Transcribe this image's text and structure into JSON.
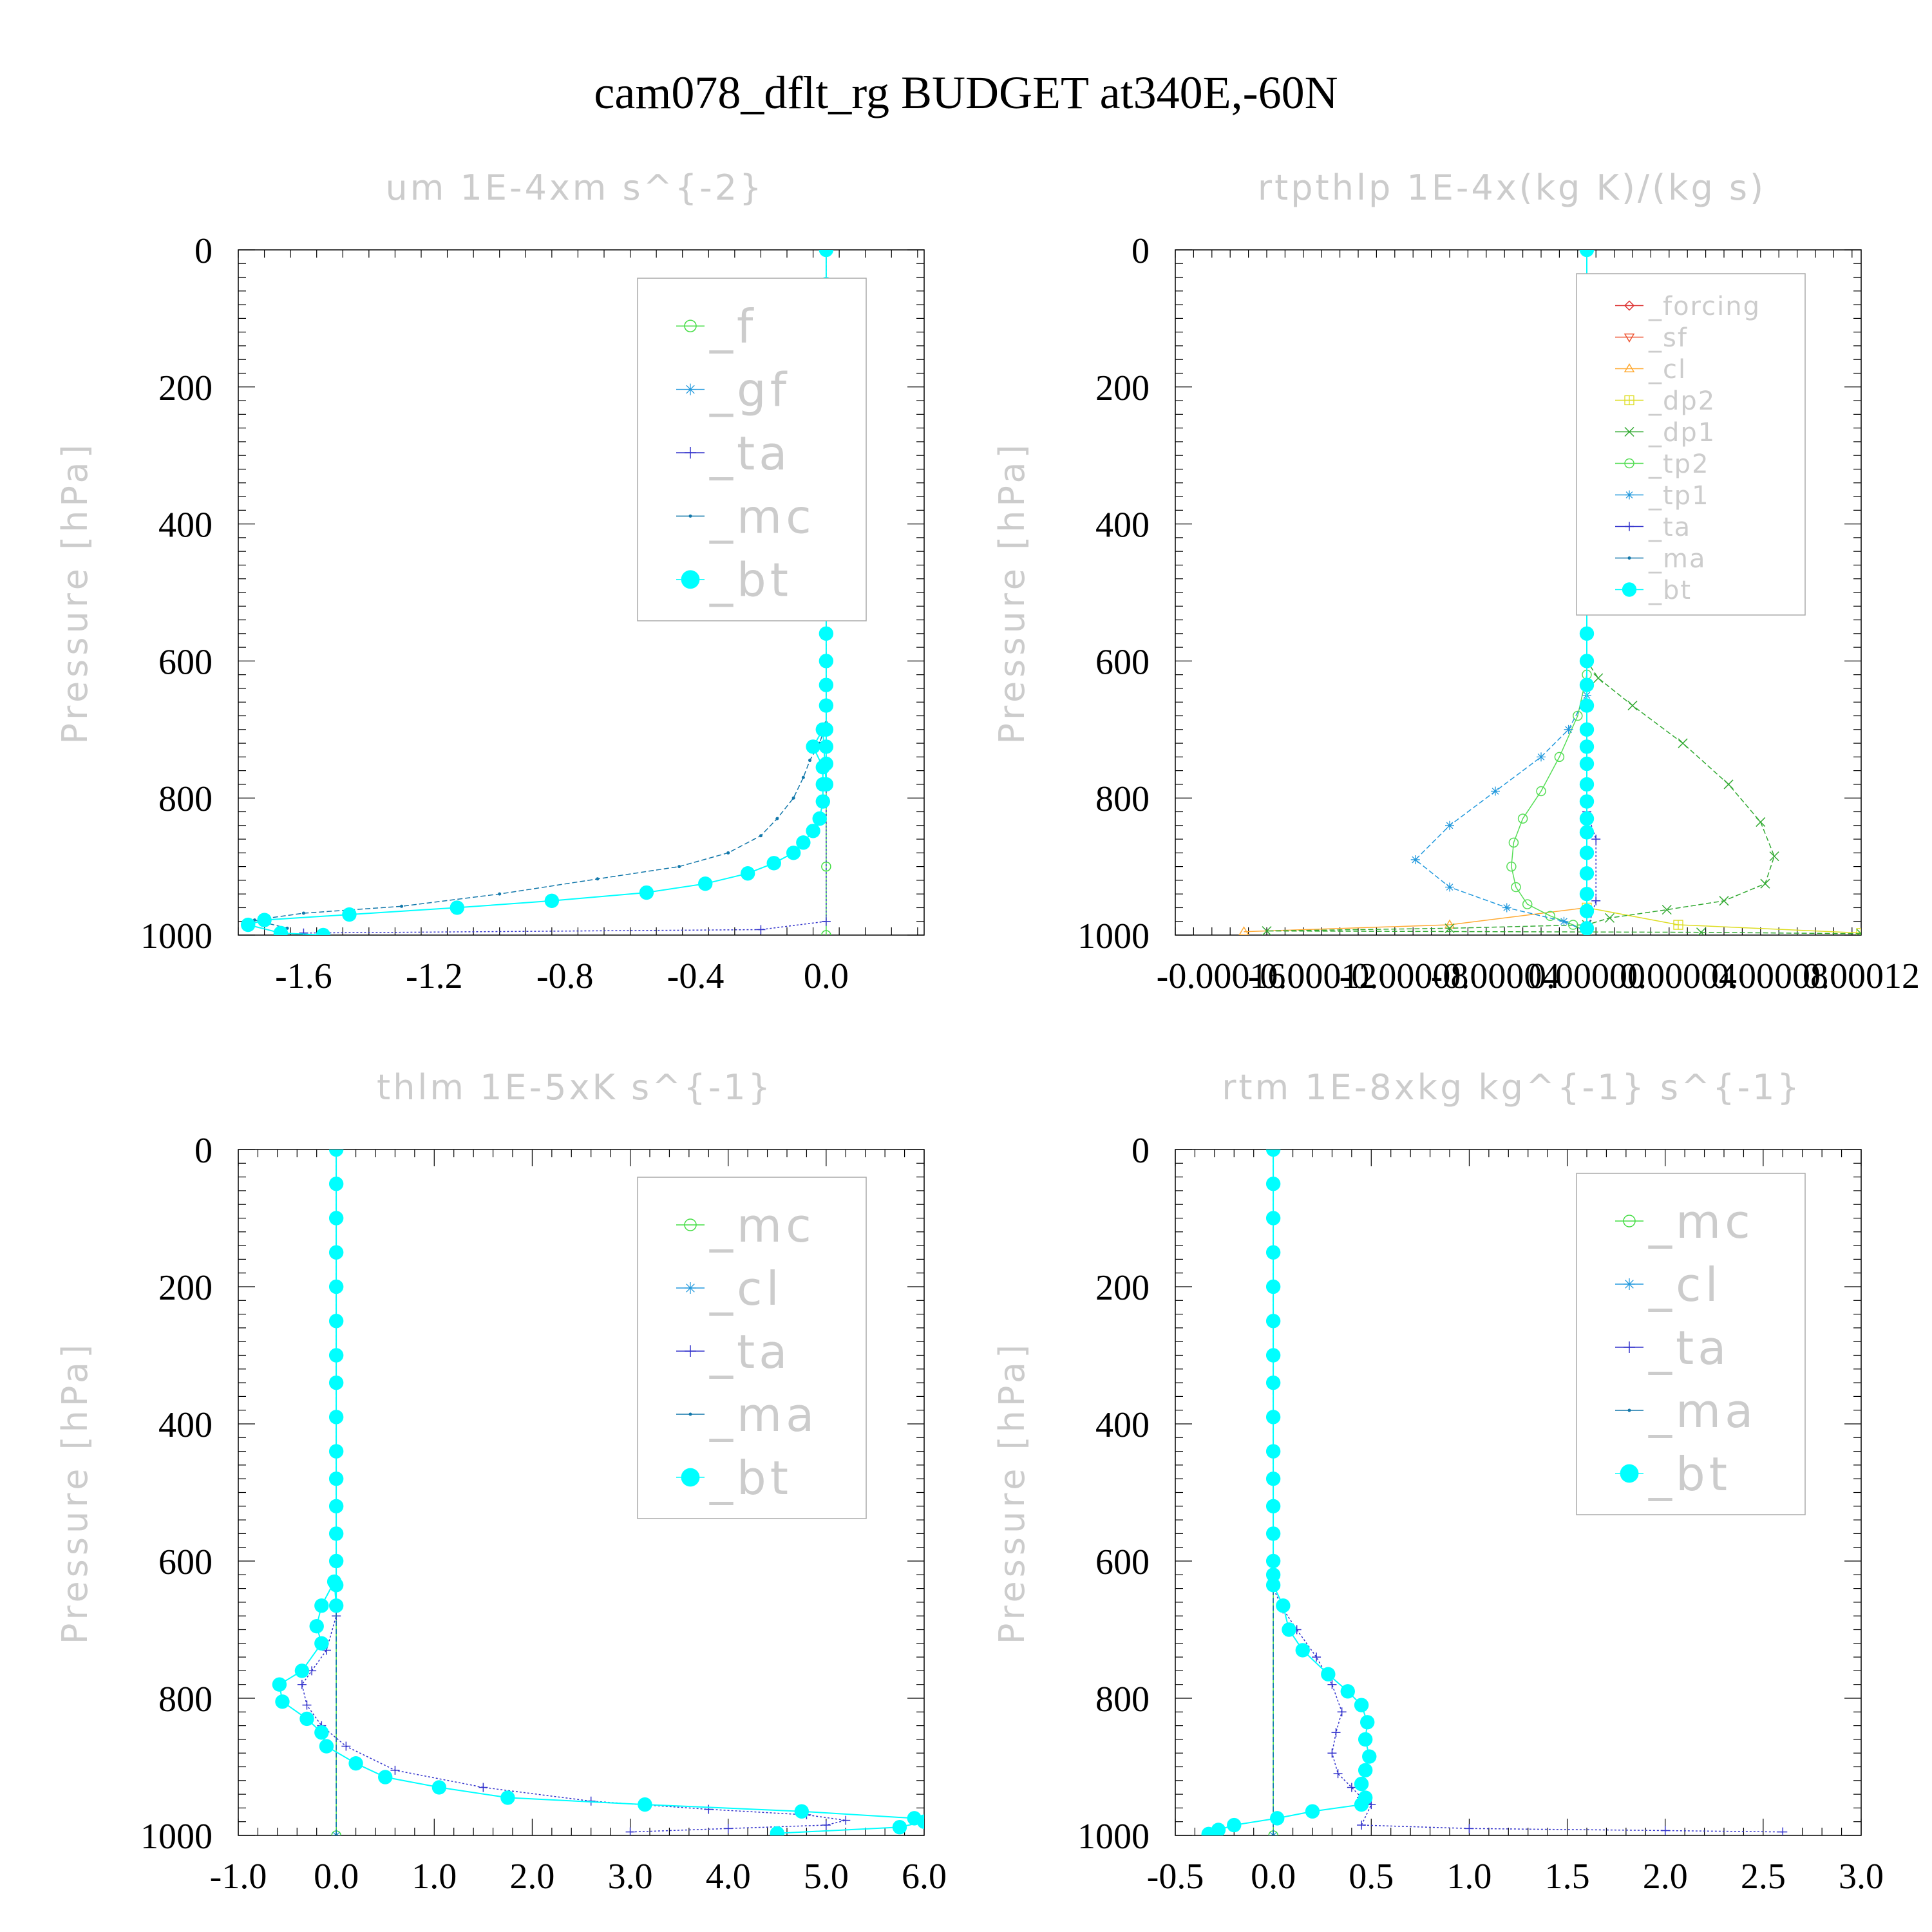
{
  "figure_title": "cam078_dflt_rg  BUDGET at340E,-60N",
  "chart_data": [
    {
      "type": "line",
      "title": "um   1E-4xm s^{-2}",
      "ylabel": "Pressure [hPa]",
      "xlabel": "",
      "ylim": [
        1000,
        0
      ],
      "xlim": [
        -1.8,
        0.3
      ],
      "xticks": [
        "-1.6",
        "-1.2",
        "-0.8",
        "-0.4",
        "0.0"
      ],
      "xtick_values": [
        -1.6,
        -1.2,
        -0.8,
        -0.4,
        0.0
      ],
      "yticks": [
        "0",
        "200",
        "400",
        "600",
        "800",
        "1000"
      ],
      "legend_position": "top-right",
      "legend": [
        {
          "label": "_f",
          "color": "#44dd44",
          "marker": "circle-open"
        },
        {
          "label": "_gf",
          "color": "#2299dd",
          "marker": "asterisk"
        },
        {
          "label": "_ta",
          "color": "#3333cc",
          "marker": "plus"
        },
        {
          "label": "_mc",
          "color": "#1177aa",
          "marker": "dot"
        },
        {
          "label": "_bt",
          "color": "#00ffff",
          "marker": "filled-circle"
        }
      ],
      "series": [
        {
          "name": "_f",
          "color": "#44dd44",
          "marker": "circle-open",
          "dash": "none",
          "x": [
            0,
            0,
            0,
            0
          ],
          "y": [
            0,
            600,
            900,
            1000
          ]
        },
        {
          "name": "_ta",
          "color": "#3333cc",
          "marker": "plus",
          "dash": "3,3",
          "x": [
            0,
            0,
            -0.2,
            -1.6
          ],
          "y": [
            0,
            980,
            992,
            997
          ]
        },
        {
          "name": "_mc",
          "color": "#1177aa",
          "marker": "dot",
          "dash": "8,4",
          "x": [
            0,
            0,
            0,
            -0.02,
            -0.05,
            -0.07,
            -0.1,
            -0.15,
            -0.2,
            -0.3,
            -0.45,
            -0.7,
            -1.0,
            -1.3,
            -1.6,
            -1.75,
            -1.65
          ],
          "y": [
            0,
            600,
            690,
            720,
            745,
            770,
            800,
            830,
            855,
            880,
            900,
            918,
            940,
            958,
            968,
            978,
            990
          ]
        },
        {
          "name": "_bt",
          "color": "#00ffff",
          "marker": "filled-circle",
          "dash": "none",
          "x": [
            0,
            0,
            0,
            0,
            0,
            0,
            0,
            0,
            0,
            0,
            0,
            0,
            0,
            0,
            0,
            0,
            0,
            0,
            0,
            0,
            -0.01,
            -0.04,
            -0.01,
            -0.01,
            -0.01,
            -0.02,
            -0.04,
            -0.07,
            -0.1,
            -0.16,
            -0.24,
            -0.37,
            -0.55,
            -0.84,
            -1.13,
            -1.46,
            -1.72,
            -1.77,
            -1.67,
            -1.54
          ],
          "y": [
            0,
            50,
            100,
            150,
            200,
            250,
            300,
            340,
            390,
            440,
            480,
            520,
            560,
            600,
            635,
            665,
            700,
            725,
            750,
            780,
            700,
            725,
            755,
            780,
            805,
            830,
            848,
            865,
            880,
            895,
            910,
            925,
            938,
            950,
            960,
            970,
            978,
            985,
            997,
            1000
          ]
        }
      ]
    },
    {
      "type": "line",
      "title": "rtpthlp   1E-4x(kg K)/(kg s)",
      "ylabel": "Pressure [hPa]",
      "xlabel": "",
      "ylim": [
        1000,
        0
      ],
      "xlim": [
        -0.00018,
        0.00012
      ],
      "xticks": [
        "-0.00016",
        "-0.00012",
        "-0.00008",
        "-0.00004",
        "0.00000",
        "0.00004",
        "0.00008",
        "0.00012"
      ],
      "xtick_values": [
        -0.00016,
        -0.00012,
        -8e-05,
        -4e-05,
        0.0,
        4e-05,
        8e-05,
        0.00012
      ],
      "yticks": [
        "0",
        "200",
        "400",
        "600",
        "800",
        "1000"
      ],
      "legend_position": "top-right",
      "legend": [
        {
          "label": "_forcing",
          "color": "#dd3333",
          "marker": "diamond"
        },
        {
          "label": "_sf",
          "color": "#ee5533",
          "marker": "triangle-down"
        },
        {
          "label": "_cl",
          "color": "#ffaa33",
          "marker": "triangle-up"
        },
        {
          "label": "_dp2",
          "color": "#dddd22",
          "marker": "square-plus"
        },
        {
          "label": "_dp1",
          "color": "#33aa33",
          "marker": "x"
        },
        {
          "label": "_tp2",
          "color": "#55dd55",
          "marker": "circle-open"
        },
        {
          "label": "_tp1",
          "color": "#2299dd",
          "marker": "asterisk"
        },
        {
          "label": "_ta",
          "color": "#3333cc",
          "marker": "plus"
        },
        {
          "label": "_ma",
          "color": "#1177aa",
          "marker": "dot"
        },
        {
          "label": "_bt",
          "color": "#00ffff",
          "marker": "filled-circle"
        }
      ],
      "series": [
        {
          "name": "_forcing",
          "color": "#dd3333",
          "marker": "diamond",
          "dash": "none",
          "x": [
            0,
            0
          ],
          "y": [
            0,
            1000
          ]
        },
        {
          "name": "_sf",
          "color": "#ee5533",
          "marker": "triangle-down",
          "dash": "3,3",
          "x": [
            0,
            0
          ],
          "y": [
            0,
            1000
          ]
        },
        {
          "name": "_cl",
          "color": "#ffaa33",
          "marker": "triangle-up",
          "dash": "none",
          "x": [
            0,
            0,
            -6e-05,
            -0.00015
          ],
          "y": [
            0,
            960,
            985,
            995
          ]
        },
        {
          "name": "_dp2",
          "color": "#dddd22",
          "marker": "square-plus",
          "dash": "none",
          "x": [
            0,
            0,
            4e-05,
            0.00012
          ],
          "y": [
            0,
            960,
            985,
            997
          ]
        },
        {
          "name": "_dp1",
          "color": "#33aa33",
          "marker": "x",
          "dash": "8,4",
          "x": [
            0,
            0,
            5e-06,
            2e-05,
            4.2e-05,
            6.2e-05,
            7.6e-05,
            8.2e-05,
            7.8e-05,
            6e-05,
            3.5e-05,
            1e-05,
            0,
            -6e-05,
            -0.00014,
            5e-05,
            0.00012
          ],
          "y": [
            0,
            600,
            625,
            665,
            720,
            780,
            835,
            885,
            925,
            950,
            963,
            975,
            985,
            990,
            994,
            996,
            998
          ]
        },
        {
          "name": "_tp2",
          "color": "#55dd55",
          "marker": "circle-open",
          "dash": "none",
          "x": [
            0,
            0,
            -4e-06,
            -1.2e-05,
            -2e-05,
            -2.8e-05,
            -3.2e-05,
            -3.3e-05,
            -3.1e-05,
            -2.6e-05,
            -1.6e-05,
            -6e-06,
            0
          ],
          "y": [
            0,
            620,
            680,
            740,
            790,
            830,
            865,
            900,
            930,
            955,
            972,
            985,
            995
          ]
        },
        {
          "name": "_tp1",
          "color": "#2299dd",
          "marker": "asterisk",
          "dash": "8,4",
          "x": [
            0,
            0,
            -8e-06,
            -2e-05,
            -4e-05,
            -6e-05,
            -7.5e-05,
            -6e-05,
            -3.5e-05,
            -1e-05,
            0
          ],
          "y": [
            0,
            650,
            700,
            740,
            790,
            840,
            890,
            930,
            960,
            980,
            995
          ]
        },
        {
          "name": "_ta",
          "color": "#3333cc",
          "marker": "plus",
          "dash": "3,3",
          "x": [
            0,
            0,
            4e-06,
            4e-06,
            0
          ],
          "y": [
            0,
            820,
            860,
            950,
            995
          ]
        },
        {
          "name": "_ma",
          "color": "#1177aa",
          "marker": "dot",
          "dash": "8,4",
          "x": [
            0,
            0
          ],
          "y": [
            0,
            1000
          ]
        },
        {
          "name": "_bt",
          "color": "#00ffff",
          "marker": "filled-circle",
          "dash": "none",
          "x": [
            0,
            0,
            0,
            0,
            0,
            0,
            0,
            0,
            0,
            0,
            0,
            0,
            0,
            0,
            0,
            0,
            0,
            0,
            0,
            0,
            0,
            0,
            0,
            0,
            0,
            0,
            0,
            0
          ],
          "y": [
            0,
            50,
            100,
            150,
            200,
            250,
            300,
            340,
            390,
            440,
            480,
            520,
            560,
            600,
            635,
            665,
            700,
            725,
            750,
            780,
            805,
            830,
            850,
            880,
            910,
            940,
            965,
            990
          ]
        }
      ]
    },
    {
      "type": "line",
      "title": "thlm   1E-5xK s^{-1}",
      "ylabel": "Pressure [hPa]",
      "xlabel": "",
      "ylim": [
        1000,
        0
      ],
      "xlim": [
        -1.0,
        6.0
      ],
      "xticks": [
        "-1.0",
        "0.0",
        "1.0",
        "2.0",
        "3.0",
        "4.0",
        "5.0",
        "6.0"
      ],
      "xtick_values": [
        -1.0,
        0.0,
        1.0,
        2.0,
        3.0,
        4.0,
        5.0,
        6.0
      ],
      "yticks": [
        "0",
        "200",
        "400",
        "600",
        "800",
        "1000"
      ],
      "legend_position": "top-right",
      "legend": [
        {
          "label": "_mc",
          "color": "#44dd44",
          "marker": "circle-open"
        },
        {
          "label": "_cl",
          "color": "#2299dd",
          "marker": "asterisk"
        },
        {
          "label": "_ta",
          "color": "#3333cc",
          "marker": "plus"
        },
        {
          "label": "_ma",
          "color": "#1177aa",
          "marker": "dot"
        },
        {
          "label": "_bt",
          "color": "#00ffff",
          "marker": "filled-circle"
        }
      ],
      "series": [
        {
          "name": "_mc",
          "color": "#44dd44",
          "marker": "circle-open",
          "dash": "none",
          "x": [
            0,
            0
          ],
          "y": [
            0,
            1000
          ]
        },
        {
          "name": "_cl",
          "color": "#2299dd",
          "marker": "asterisk",
          "dash": "8,4",
          "x": [
            0,
            0
          ],
          "y": [
            0,
            1000
          ]
        },
        {
          "name": "_ta",
          "color": "#3333cc",
          "marker": "plus",
          "dash": "3,3",
          "x": [
            0,
            0,
            -0.1,
            -0.25,
            -0.35,
            -0.3,
            -0.15,
            0.1,
            0.6,
            1.5,
            2.6,
            3.8,
            4.8,
            5.2,
            5.0,
            4.0,
            3.0
          ],
          "y": [
            0,
            680,
            730,
            760,
            780,
            810,
            840,
            870,
            905,
            930,
            950,
            962,
            970,
            978,
            985,
            990,
            995
          ]
        },
        {
          "name": "_ma",
          "color": "#1177aa",
          "marker": "dot",
          "dash": "8,4",
          "x": [
            0,
            0
          ],
          "y": [
            0,
            1000
          ]
        },
        {
          "name": "_bt",
          "color": "#00ffff",
          "marker": "filled-circle",
          "dash": "none",
          "x": [
            0,
            0,
            0,
            0,
            0,
            0,
            0,
            0,
            0,
            0,
            0,
            0,
            0,
            0,
            0,
            0,
            -0.02,
            -0.15,
            -0.2,
            -0.15,
            -0.35,
            -0.58,
            -0.55,
            -0.3,
            -0.15,
            -0.1,
            0.2,
            0.5,
            1.05,
            1.75,
            3.15,
            4.75,
            5.9,
            6.0,
            5.75,
            4.5
          ],
          "y": [
            0,
            50,
            100,
            150,
            200,
            250,
            300,
            340,
            390,
            440,
            480,
            520,
            560,
            600,
            635,
            665,
            630,
            665,
            695,
            720,
            760,
            780,
            805,
            830,
            850,
            870,
            895,
            915,
            930,
            945,
            955,
            965,
            975,
            980,
            988,
            997
          ]
        }
      ]
    },
    {
      "type": "line",
      "title": "rtm   1E-8xkg kg^{-1} s^{-1}",
      "ylabel": "Pressure [hPa]",
      "xlabel": "",
      "ylim": [
        1000,
        0
      ],
      "xlim": [
        -0.5,
        3.0
      ],
      "xticks": [
        "-0.5",
        "0.0",
        "0.5",
        "1.0",
        "1.5",
        "2.0",
        "2.5",
        "3.0"
      ],
      "xtick_values": [
        -0.5,
        0.0,
        0.5,
        1.0,
        1.5,
        2.0,
        2.5,
        3.0
      ],
      "yticks": [
        "0",
        "200",
        "400",
        "600",
        "800",
        "1000"
      ],
      "legend_position": "top-right",
      "legend": [
        {
          "label": "_mc",
          "color": "#44dd44",
          "marker": "circle-open"
        },
        {
          "label": "_cl",
          "color": "#2299dd",
          "marker": "asterisk"
        },
        {
          "label": "_ta",
          "color": "#3333cc",
          "marker": "plus"
        },
        {
          "label": "_ma",
          "color": "#1177aa",
          "marker": "dot"
        },
        {
          "label": "_bt",
          "color": "#00ffff",
          "marker": "filled-circle"
        }
      ],
      "series": [
        {
          "name": "_mc",
          "color": "#44dd44",
          "marker": "circle-open",
          "dash": "none",
          "x": [
            0,
            0
          ],
          "y": [
            0,
            1000
          ]
        },
        {
          "name": "_cl",
          "color": "#2299dd",
          "marker": "asterisk",
          "dash": "8,4",
          "x": [
            0,
            0
          ],
          "y": [
            0,
            1000
          ]
        },
        {
          "name": "_ta",
          "color": "#3333cc",
          "marker": "plus",
          "dash": "3,3",
          "x": [
            0,
            0,
            0.05,
            0.12,
            0.22,
            0.3,
            0.35,
            0.32,
            0.3,
            0.33,
            0.4,
            0.45,
            0.5,
            0.45,
            1.0,
            2.0,
            2.6
          ],
          "y": [
            0,
            640,
            670,
            700,
            740,
            780,
            820,
            850,
            880,
            910,
            930,
            945,
            955,
            985,
            990,
            993,
            995
          ]
        },
        {
          "name": "_ma",
          "color": "#1177aa",
          "marker": "dot",
          "dash": "8,4",
          "x": [
            0,
            0
          ],
          "y": [
            0,
            1000
          ]
        },
        {
          "name": "_bt",
          "color": "#00ffff",
          "marker": "filled-circle",
          "dash": "none",
          "x": [
            0,
            0,
            0,
            0,
            0,
            0,
            0,
            0,
            0,
            0,
            0,
            0,
            0,
            0,
            0,
            0,
            0.05,
            0.08,
            0.15,
            0.28,
            0.38,
            0.45,
            0.48,
            0.47,
            0.49,
            0.47,
            0.45,
            0.47,
            0.45,
            0.2,
            0.02,
            -0.2,
            -0.28,
            -0.33
          ],
          "y": [
            0,
            50,
            100,
            150,
            200,
            250,
            300,
            340,
            390,
            440,
            480,
            520,
            560,
            600,
            620,
            635,
            665,
            700,
            730,
            765,
            790,
            810,
            835,
            860,
            885,
            905,
            925,
            945,
            955,
            965,
            975,
            985,
            992,
            998
          ]
        }
      ]
    }
  ]
}
